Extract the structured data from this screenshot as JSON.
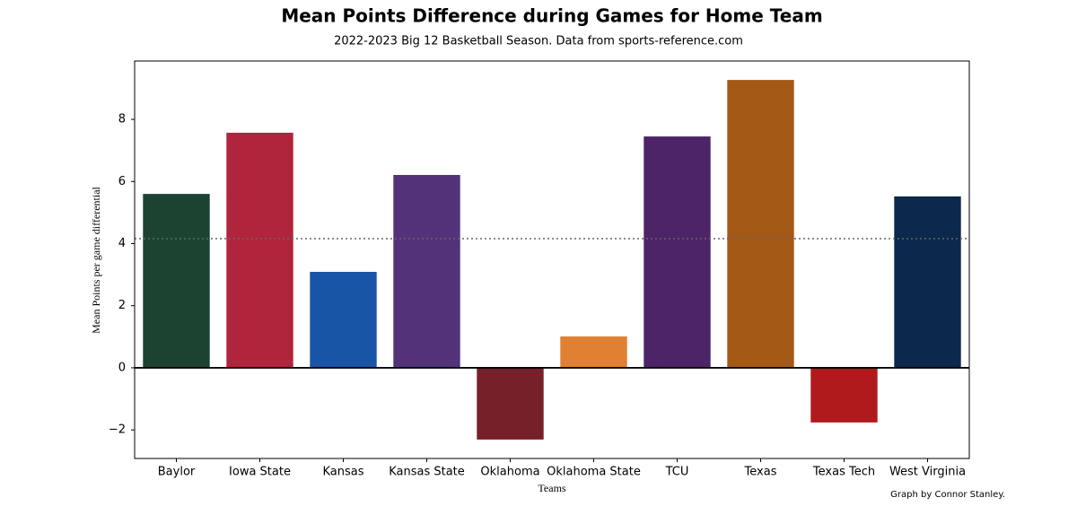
{
  "chart_data": {
    "type": "bar",
    "title": "Mean Points Difference during Games for Home Team",
    "subtitle": "2022-2023 Big 12 Basketball Season. Data from sports-reference.com",
    "x_label": "Teams",
    "y_label": "Mean Points per game differential",
    "annotation": "Graph by Connor Stanley.",
    "categories": [
      "Baylor",
      "Iowa State",
      "Kansas",
      "Kansas State",
      "Oklahoma",
      "Oklahoma State",
      "TCU",
      "Texas",
      "Texas Tech",
      "West Virginia"
    ],
    "values": [
      5.6,
      7.57,
      3.09,
      6.21,
      -2.31,
      1.01,
      7.45,
      9.27,
      -1.76,
      5.52
    ],
    "colors": [
      "#1c4332",
      "#b0243c",
      "#1855a6",
      "#533279",
      "#76202a",
      "#e08033",
      "#4d2468",
      "#a45916",
      "#b01a1c",
      "#0c284c"
    ],
    "mean_line": 4.16,
    "ylim": [
      -2.92,
      9.88
    ],
    "yticks": [
      {
        "value": -2,
        "label": "−2"
      },
      0,
      2,
      4,
      6,
      8
    ]
  }
}
